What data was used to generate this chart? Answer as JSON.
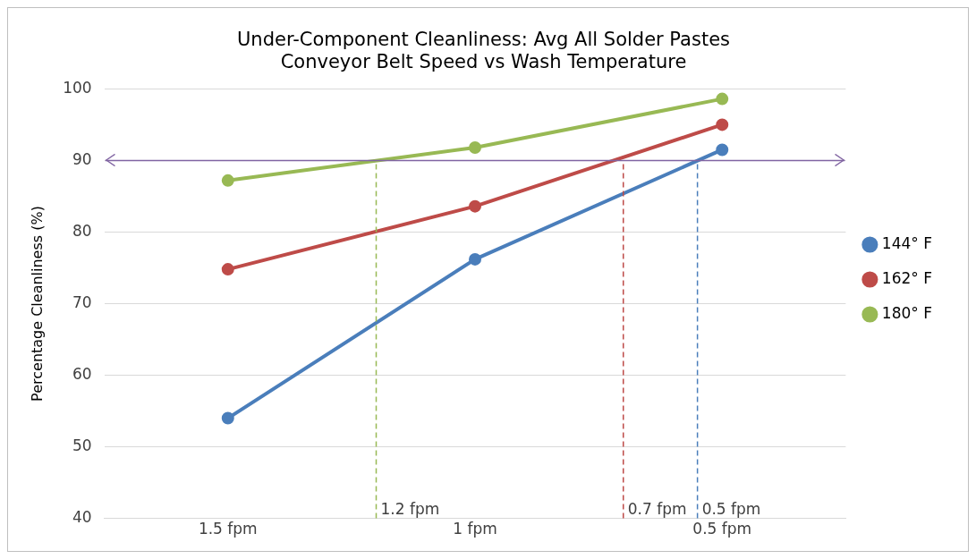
{
  "chart_data": {
    "type": "line",
    "title": "Under-Component Cleanliness: Avg All Solder Pastes\nConveyor Belt Speed vs Wash Temperature",
    "ylabel": "Percentage Cleanliness (%)",
    "x": [
      1.5,
      1,
      0.5
    ],
    "xlim": [
      1.75,
      0.25
    ],
    "xticks": [
      {
        "value": 1.5,
        "label": "1.5 fpm"
      },
      {
        "value": 1,
        "label": "1 fpm"
      },
      {
        "value": 0.5,
        "label": "0.5 fpm"
      }
    ],
    "ylim": [
      40,
      100
    ],
    "yticks": [
      40,
      50,
      60,
      70,
      80,
      90,
      100
    ],
    "grid": "y",
    "legend": "right",
    "marker": "circle",
    "line_style": "solid",
    "series": [
      {
        "name": "144° F",
        "color": "#4a7ebb",
        "values": [
          54,
          76.2,
          91.5
        ]
      },
      {
        "name": "162° F",
        "color": "#be4b48",
        "values": [
          74.8,
          83.6,
          95
        ]
      },
      {
        "name": "180° F",
        "color": "#98b954",
        "values": [
          87.2,
          91.8,
          98.6
        ]
      }
    ],
    "ref_lines": [
      {
        "axis": "y",
        "value": 90,
        "color": "#8064a2",
        "line_style": "solid"
      },
      {
        "axis": "x",
        "value": 1.2,
        "label": "1.2 fpm",
        "color": "#98b954",
        "line_style": "dashed"
      },
      {
        "axis": "x",
        "value": 0.7,
        "label": "0.7 fpm",
        "color": "#be4b48",
        "line_style": "dashed"
      },
      {
        "axis": "x",
        "value": 0.55,
        "label": "0.5 fpm",
        "color": "#4a7ebb",
        "line_style": "dashed"
      }
    ]
  }
}
